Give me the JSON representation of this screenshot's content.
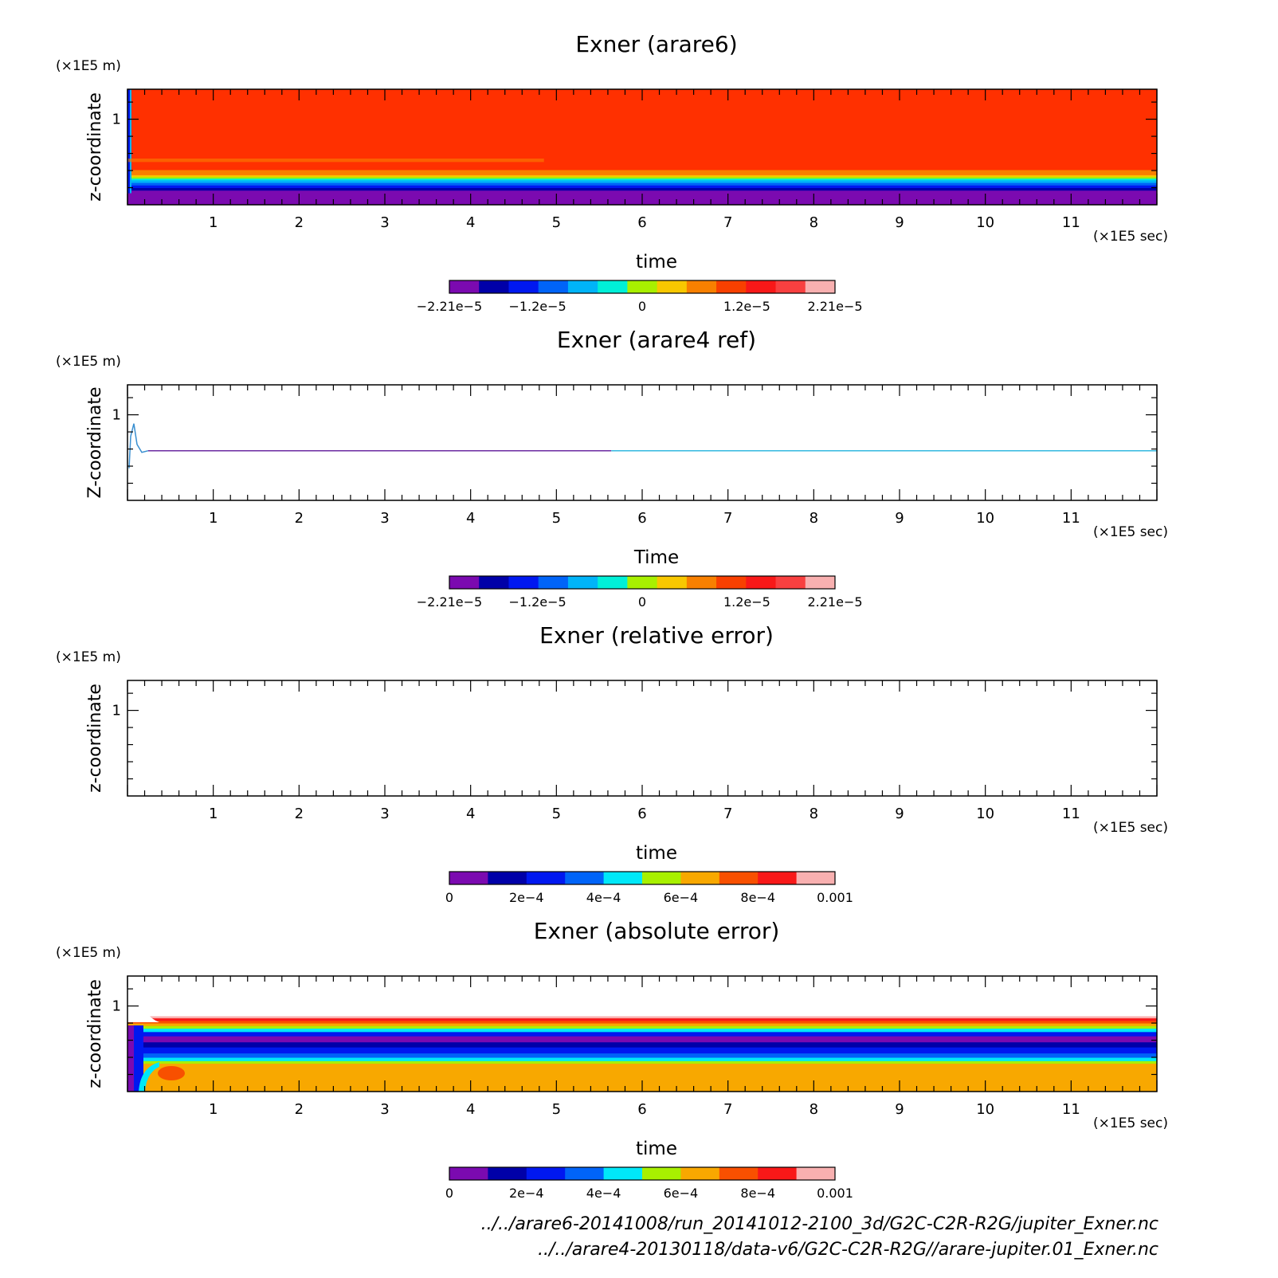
{
  "chart_data": [
    {
      "type": "heatmap",
      "title": "Exner (arare6)",
      "xlabel": "time",
      "ylabel": "z-coordinate",
      "x_unit": "(×1E5 sec)",
      "y_unit": "(×1E5 m)",
      "xlim": [
        0,
        12
      ],
      "ylim": [
        0,
        1.35
      ],
      "x_ticks": [
        "1",
        "2",
        "3",
        "4",
        "5",
        "6",
        "7",
        "8",
        "9",
        "10",
        "11"
      ],
      "y_ticks": [
        "1"
      ],
      "colorbar": {
        "ticks": [
          "−2.21e−5",
          "−1.2e−5",
          "0",
          "1.2e−5",
          "2.21e−5"
        ],
        "tick_values": [
          -2.21e-05,
          -1.2e-05,
          0,
          1.2e-05,
          2.21e-05
        ],
        "colors": [
          "#7b0ab0",
          "#0000a8",
          "#0018f0",
          "#0064f8",
          "#00b4f8",
          "#00f0d8",
          "#a8f000",
          "#f8c800",
          "#f88000",
          "#f84000",
          "#f81818",
          "#f84040",
          "#f8b0b0"
        ]
      },
      "bands": [
        {
          "z0": 0.0,
          "z1": 0.02,
          "color": "#7b0ab0"
        },
        {
          "z0": 0.02,
          "z1": 0.17,
          "color": "#7b0ab0"
        },
        {
          "z0": 0.17,
          "z1": 0.2,
          "color": "#0000a8"
        },
        {
          "z0": 0.2,
          "z1": 0.23,
          "color": "#0018f0"
        },
        {
          "z0": 0.23,
          "z1": 0.26,
          "color": "#0064f8"
        },
        {
          "z0": 0.26,
          "z1": 0.29,
          "color": "#00b4f8"
        },
        {
          "z0": 0.29,
          "z1": 0.31,
          "color": "#00f0d8"
        },
        {
          "z0": 0.31,
          "z1": 0.33,
          "color": "#a8f000"
        },
        {
          "z0": 0.33,
          "z1": 0.35,
          "color": "#f8c800"
        },
        {
          "z0": 0.35,
          "z1": 0.41,
          "color": "#f88000"
        },
        {
          "z0": 0.41,
          "z1": 1.35,
          "color": "#ff3000"
        }
      ]
    },
    {
      "type": "heatmap",
      "title": "Exner (arare4 ref)",
      "xlabel": "Time",
      "ylabel": "Z-coordinate",
      "x_unit": "(×1E5 sec)",
      "y_unit": "(×1E5 m)",
      "xlim": [
        0,
        12
      ],
      "ylim": [
        0,
        1.35
      ],
      "x_ticks": [
        "1",
        "2",
        "3",
        "4",
        "5",
        "6",
        "7",
        "8",
        "9",
        "10",
        "11"
      ],
      "y_ticks": [
        "1"
      ],
      "colorbar": {
        "ticks": [
          "−2.21e−5",
          "−1.2e−5",
          "0",
          "1.2e−5",
          "2.21e−5"
        ],
        "tick_values": [
          -2.21e-05,
          -1.2e-05,
          0,
          1.2e-05,
          2.21e-05
        ],
        "colors": [
          "#7b0ab0",
          "#0000a8",
          "#0018f0",
          "#0064f8",
          "#00b4f8",
          "#00f0d8",
          "#a8f000",
          "#f8c800",
          "#f88000",
          "#f84000",
          "#f81818",
          "#f84040",
          "#f8b0b0"
        ]
      },
      "line_z": 0.58
    },
    {
      "type": "heatmap",
      "title": "Exner (relative error)",
      "xlabel": "time",
      "ylabel": "z-coordinate",
      "x_unit": "(×1E5 sec)",
      "y_unit": "(×1E5 m)",
      "xlim": [
        0,
        12
      ],
      "ylim": [
        0,
        1.35
      ],
      "x_ticks": [
        "1",
        "2",
        "3",
        "4",
        "5",
        "6",
        "7",
        "8",
        "9",
        "10",
        "11"
      ],
      "y_ticks": [
        "1"
      ],
      "colorbar": {
        "ticks": [
          "0",
          "2e−4",
          "4e−4",
          "6e−4",
          "8e−4",
          "0.001"
        ],
        "tick_values": [
          0,
          0.0002,
          0.0004,
          0.0006,
          0.0008,
          0.001
        ],
        "colors": [
          "#7b0ab0",
          "#0000a8",
          "#0018f0",
          "#0064f8",
          "#00e8f8",
          "#a8f000",
          "#f8a800",
          "#f85000",
          "#f81818",
          "#f8b0b0"
        ]
      }
    },
    {
      "type": "heatmap",
      "title": "Exner (absolute error)",
      "xlabel": "time",
      "ylabel": "z-coordinate",
      "x_unit": "(×1E5 sec)",
      "y_unit": "(×1E5 m)",
      "xlim": [
        0,
        12
      ],
      "ylim": [
        0,
        1.35
      ],
      "x_ticks": [
        "1",
        "2",
        "3",
        "4",
        "5",
        "6",
        "7",
        "8",
        "9",
        "10",
        "11"
      ],
      "y_ticks": [
        "1"
      ],
      "colorbar": {
        "ticks": [
          "0",
          "2e−4",
          "4e−4",
          "6e−4",
          "8e−4",
          "0.001"
        ],
        "tick_values": [
          0,
          0.0002,
          0.0004,
          0.0006,
          0.0008,
          0.001
        ],
        "colors": [
          "#7b0ab0",
          "#0000a8",
          "#0018f0",
          "#0064f8",
          "#00e8f8",
          "#a8f000",
          "#f8a800",
          "#f85000",
          "#f81818",
          "#f8b0b0"
        ]
      },
      "bands": [
        {
          "z0": 0.0,
          "z1": 0.33,
          "color": "#f8a800"
        },
        {
          "z0": 0.33,
          "z1": 0.36,
          "color": "#a8f000"
        },
        {
          "z0": 0.36,
          "z1": 0.4,
          "color": "#00e8f8"
        },
        {
          "z0": 0.4,
          "z1": 0.45,
          "color": "#0064f8"
        },
        {
          "z0": 0.45,
          "z1": 0.52,
          "color": "#0018f0"
        },
        {
          "z0": 0.52,
          "z1": 0.58,
          "color": "#0000a8"
        },
        {
          "z0": 0.58,
          "z1": 0.65,
          "color": "#7b0ab0"
        },
        {
          "z0": 0.65,
          "z1": 0.7,
          "color": "#0018f0"
        },
        {
          "z0": 0.7,
          "z1": 0.74,
          "color": "#00e8f8"
        },
        {
          "z0": 0.74,
          "z1": 0.77,
          "color": "#a8f000"
        },
        {
          "z0": 0.77,
          "z1": 0.8,
          "color": "#f8a800"
        },
        {
          "z0": 0.8,
          "z1": 0.83,
          "color": "#f85000"
        },
        {
          "z0": 0.83,
          "z1": 0.86,
          "color": "#f81818"
        },
        {
          "z0": 0.86,
          "z1": 0.88,
          "color": "#f8b0b0"
        }
      ]
    }
  ],
  "footer": {
    "path_1": "../../arare6-20141008/run_20141012-2100_3d/G2C-C2R-R2G/jupiter_Exner.nc",
    "path_2": "../../arare4-20130118/data-v6/G2C-C2R-R2G//arare-jupiter.01_Exner.nc"
  }
}
